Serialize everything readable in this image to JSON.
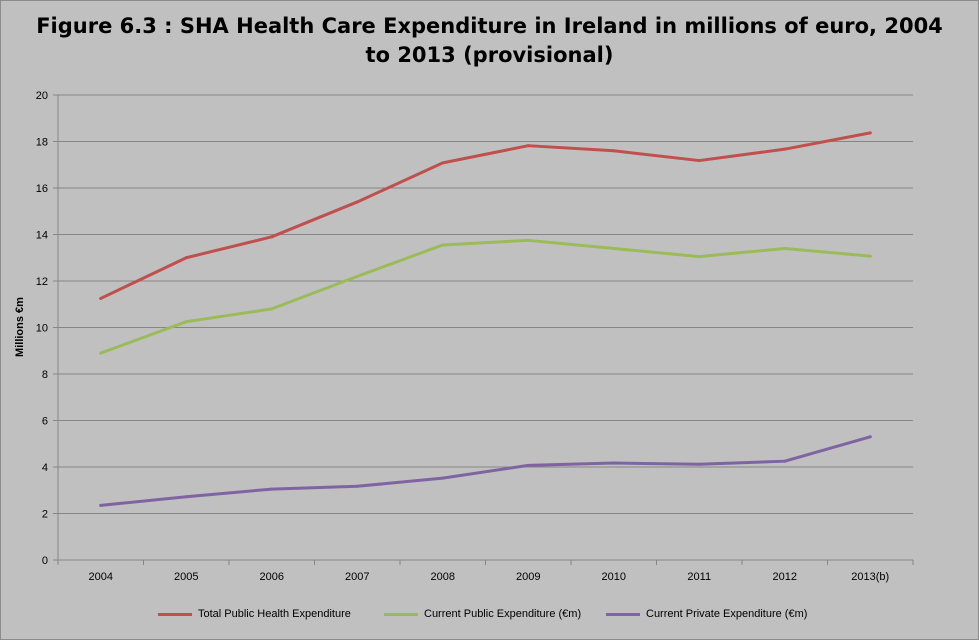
{
  "chart_data": {
    "type": "line",
    "title_line1": "Figure 6.3 :  SHA Health Care Expenditure in Ireland in millions of euro, 2004",
    "title_line2": "to 2013 (provisional)",
    "ylabel": "Millions €m",
    "xlabel": "",
    "categories": [
      "2004",
      "2005",
      "2006",
      "2007",
      "2008",
      "2009",
      "2010",
      "2011",
      "2012",
      "2013(b)"
    ],
    "ylim": [
      0,
      20
    ],
    "yticks": [
      0,
      2,
      4,
      6,
      8,
      10,
      12,
      14,
      16,
      18,
      20
    ],
    "grid": true,
    "legend_position": "bottom",
    "series": [
      {
        "name": "Total Public Health Expenditure",
        "color": "#c0504d",
        "values": [
          11.25,
          13.0,
          13.9,
          15.4,
          17.08,
          17.82,
          17.6,
          17.18,
          17.67,
          18.37
        ]
      },
      {
        "name": "Current Public Expenditure (€m)",
        "color": "#9bbb59",
        "values": [
          8.9,
          10.25,
          10.8,
          12.2,
          13.55,
          13.75,
          13.4,
          13.05,
          13.4,
          13.07
        ]
      },
      {
        "name": "Current Private Expenditure (€m)",
        "color": "#8064a2",
        "values": [
          2.35,
          2.72,
          3.05,
          3.17,
          3.52,
          4.07,
          4.17,
          4.12,
          4.25,
          5.3
        ]
      }
    ]
  }
}
